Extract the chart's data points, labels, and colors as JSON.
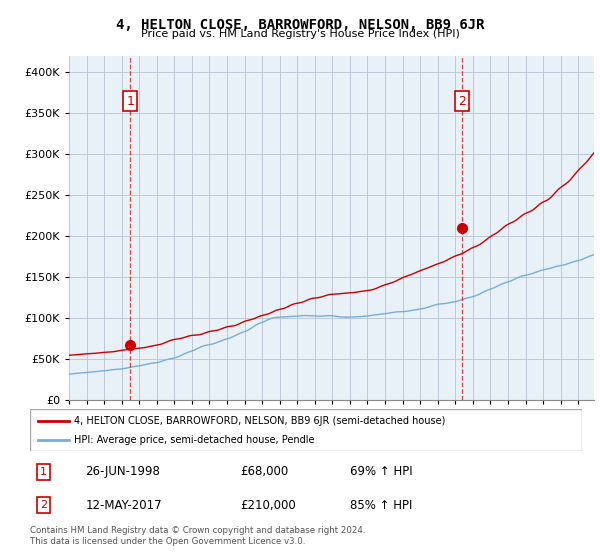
{
  "title": "4, HELTON CLOSE, BARROWFORD, NELSON, BB9 6JR",
  "subtitle": "Price paid vs. HM Land Registry's House Price Index (HPI)",
  "sale1_date": "26-JUN-1998",
  "sale1_price": 68000,
  "sale1_hpi": "69% ↑ HPI",
  "sale1_label": "1",
  "sale2_date": "12-MAY-2017",
  "sale2_price": 210000,
  "sale2_hpi": "85% ↑ HPI",
  "sale2_label": "2",
  "legend_red": "4, HELTON CLOSE, BARROWFORD, NELSON, BB9 6JR (semi-detached house)",
  "legend_blue": "HPI: Average price, semi-detached house, Pendle",
  "footer": "Contains HM Land Registry data © Crown copyright and database right 2024.\nThis data is licensed under the Open Government Licence v3.0.",
  "red_color": "#cc0000",
  "blue_color": "#7aaed6",
  "bg_color": "#e8f0f8",
  "grid_color": "#c0c8d8",
  "ylim": [
    0,
    420000
  ],
  "yticks": [
    0,
    50000,
    100000,
    150000,
    200000,
    250000,
    300000,
    350000,
    400000
  ],
  "sale1_x": 1998.49,
  "sale2_x": 2017.37,
  "hpi_monthly": {
    "start_year": 1995,
    "start_month": 1,
    "values": [
      32000,
      32200,
      32400,
      32500,
      32700,
      32900,
      33100,
      33300,
      33500,
      33600,
      33700,
      33800,
      34000,
      34200,
      34400,
      34500,
      34700,
      34900,
      35100,
      35300,
      35500,
      35600,
      35700,
      35800,
      36000,
      36200,
      36500,
      36800,
      37100,
      37300,
      37500,
      37700,
      37900,
      38000,
      38100,
      38200,
      38400,
      38700,
      39000,
      39300,
      39700,
      40100,
      40500,
      40900,
      41200,
      41500,
      41700,
      41900,
      42100,
      42400,
      42800,
      43200,
      43700,
      44100,
      44500,
      44900,
      45200,
      45400,
      45600,
      45800,
      46100,
      46500,
      47000,
      47600,
      48200,
      48800,
      49400,
      49900,
      50300,
      50700,
      51000,
      51300,
      51700,
      52200,
      52800,
      53500,
      54300,
      55200,
      56100,
      57000,
      57800,
      58500,
      59100,
      59600,
      60200,
      60900,
      61700,
      62600,
      63500,
      64400,
      65200,
      65900,
      66500,
      67000,
      67400,
      67700,
      68000,
      68300,
      68700,
      69200,
      69800,
      70500,
      71200,
      72000,
      72700,
      73400,
      74000,
      74500,
      75000,
      75500,
      76100,
      76800,
      77600,
      78500,
      79400,
      80300,
      81200,
      82000,
      82700,
      83300,
      83900,
      84600,
      85400,
      86400,
      87500,
      88700,
      89900,
      91100,
      92200,
      93100,
      93900,
      94500,
      95100,
      95800,
      96600,
      97500,
      98400,
      99200,
      99900,
      100400,
      100800,
      101100,
      101300,
      101400,
      101500,
      101600,
      101700,
      101800,
      101900,
      102000,
      102100,
      102200,
      102300,
      102400,
      102500,
      102600,
      102700,
      102800,
      103000,
      103200,
      103400,
      103500,
      103500,
      103400,
      103300,
      103200,
      103100,
      103000,
      102900,
      102800,
      102700,
      102700,
      102700,
      102800,
      102900,
      103000,
      103100,
      103200,
      103300,
      103300,
      103200,
      103000,
      102700,
      102400,
      102100,
      101900,
      101800,
      101700,
      101600,
      101500,
      101500,
      101500,
      101500,
      101600,
      101700,
      101800,
      101900,
      102000,
      102100,
      102200,
      102300,
      102400,
      102500,
      102700,
      102900,
      103200,
      103500,
      103800,
      104100,
      104300,
      104500,
      104700,
      104900,
      105100,
      105300,
      105500,
      105700,
      106000,
      106300,
      106600,
      107000,
      107300,
      107600,
      107800,
      108000,
      108100,
      108200,
      108200,
      108200,
      108300,
      108500,
      108700,
      109000,
      109300,
      109600,
      109900,
      110200,
      110500,
      110800,
      111100,
      111400,
      111700,
      112000,
      112400,
      112900,
      113400,
      114000,
      114600,
      115200,
      115800,
      116300,
      116800,
      117200,
      117500,
      117700,
      117800,
      117900,
      118100,
      118400,
      118700,
      119100,
      119500,
      119800,
      120100,
      120400,
      120800,
      121300,
      121900,
      122500,
      123100,
      123700,
      124300,
      124800,
      125200,
      125600,
      126000,
      126500,
      127000,
      127600,
      128300,
      129100,
      130000,
      131000,
      132000,
      132900,
      133700,
      134400,
      135000,
      135600,
      136300,
      137000,
      137800,
      138700,
      139600,
      140500,
      141300,
      142100,
      142800,
      143400,
      143900,
      144400,
      145000,
      145700,
      146500,
      147400,
      148300,
      149200,
      150000,
      150700,
      151300,
      151800,
      152200,
      152600,
      153000,
      153400,
      153800,
      154300,
      154900,
      155600,
      156300,
      157000,
      157600,
      158200,
      158700,
      159100,
      159500,
      159800,
      160200,
      160600,
      161100,
      161700,
      162300,
      162900,
      163400,
      163800,
      164100,
      164400,
      164700,
      165100,
      165500,
      166100,
      166700,
      167400,
      168100,
      168700,
      169200,
      169600,
      170000,
      170400,
      170900,
      171500,
      172200,
      173000,
      173800,
      174600,
      175400,
      176100,
      176700,
      177200,
      177700
    ]
  },
  "red_monthly": {
    "start_year": 1995,
    "start_month": 1,
    "values": [
      55000,
      55200,
      55400,
      55500,
      55600,
      55700,
      55800,
      56000,
      56200,
      56400,
      56600,
      56700,
      56800,
      56900,
      57000,
      57100,
      57200,
      57300,
      57500,
      57700,
      57900,
      58100,
      58300,
      58500,
      58600,
      58700,
      58800,
      58900,
      59000,
      59100,
      59300,
      59600,
      59900,
      60200,
      60500,
      60800,
      61100,
      61400,
      61600,
      61800,
      62000,
      62200,
      62400,
      62600,
      62800,
      63000,
      63200,
      63400,
      63500,
      63700,
      63900,
      64200,
      64500,
      64900,
      65300,
      65700,
      66100,
      66500,
      66800,
      67100,
      67400,
      67700,
      68100,
      68600,
      69200,
      69900,
      70700,
      71500,
      72200,
      72900,
      73500,
      74000,
      74400,
      74700,
      74900,
      75100,
      75400,
      75800,
      76300,
      76900,
      77500,
      78100,
      78600,
      79000,
      79300,
      79500,
      79600,
      79700,
      79800,
      80000,
      80400,
      80900,
      81500,
      82200,
      82900,
      83500,
      84000,
      84400,
      84700,
      84900,
      85100,
      85400,
      85900,
      86500,
      87200,
      87900,
      88600,
      89200,
      89700,
      90100,
      90400,
      90600,
      90800,
      91100,
      91600,
      92300,
      93100,
      94000,
      94900,
      95700,
      96400,
      97000,
      97500,
      97900,
      98300,
      98800,
      99400,
      100100,
      100900,
      101700,
      102500,
      103100,
      103600,
      104000,
      104400,
      104800,
      105300,
      106000,
      106800,
      107700,
      108600,
      109400,
      110100,
      110600,
      111000,
      111400,
      111800,
      112300,
      113000,
      113800,
      114700,
      115600,
      116500,
      117200,
      117800,
      118200,
      118500,
      118800,
      119100,
      119500,
      120100,
      120800,
      121600,
      122400,
      123200,
      123800,
      124300,
      124600,
      124800,
      125000,
      125200,
      125500,
      125900,
      126400,
      127000,
      127600,
      128200,
      128700,
      129100,
      129300,
      129400,
      129500,
      129600,
      129700,
      129900,
      130100,
      130300,
      130500,
      130700,
      130800,
      130900,
      131000,
      131100,
      131200,
      131400,
      131600,
      131900,
      132200,
      132500,
      132800,
      133100,
      133300,
      133500,
      133700,
      133900,
      134100,
      134400,
      134800,
      135300,
      135900,
      136600,
      137400,
      138200,
      139000,
      139700,
      140400,
      141000,
      141600,
      142100,
      142600,
      143100,
      143700,
      144400,
      145200,
      146100,
      147100,
      148000,
      148900,
      149700,
      150400,
      151100,
      151700,
      152300,
      152900,
      153600,
      154300,
      155100,
      155900,
      156700,
      157500,
      158200,
      158900,
      159500,
      160100,
      160700,
      161400,
      162100,
      162900,
      163700,
      164500,
      165200,
      165900,
      166500,
      167100,
      167700,
      168300,
      169000,
      169800,
      170700,
      171700,
      172700,
      173700,
      174600,
      175400,
      176100,
      176700,
      177300,
      177900,
      178600,
      179400,
      180300,
      181300,
      182400,
      183500,
      184600,
      185600,
      186400,
      187100,
      187800,
      188500,
      189400,
      190400,
      191600,
      192900,
      194300,
      195800,
      197200,
      198500,
      199700,
      200800,
      201800,
      202800,
      203900,
      205100,
      206500,
      208000,
      209600,
      211100,
      212500,
      213700,
      214700,
      215600,
      216400,
      217200,
      218100,
      219200,
      220400,
      221800,
      223300,
      224700,
      226000,
      227100,
      228000,
      228800,
      229500,
      230300,
      231200,
      232300,
      233600,
      235100,
      236700,
      238300,
      239700,
      240900,
      241900,
      242700,
      243500,
      244400,
      245600,
      247100,
      248800,
      250700,
      252700,
      254700,
      256600,
      258300,
      259700,
      261000,
      262200,
      263400,
      264700,
      266200,
      267900,
      269800,
      271900,
      274100,
      276300,
      278500,
      280500,
      282400,
      284200,
      285900,
      287600,
      289400,
      291300,
      293500,
      295800,
      298100,
      300300,
      302400
    ]
  }
}
